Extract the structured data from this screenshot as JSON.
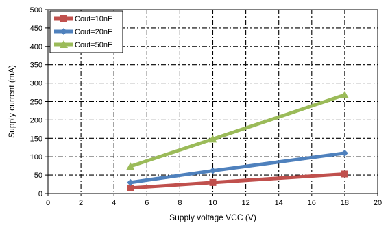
{
  "chart_data": {
    "type": "line",
    "xlabel": "Supply voltage VCC (V)",
    "ylabel": "Supply current (mA)",
    "xlim": [
      0,
      20
    ],
    "ylim": [
      0,
      500
    ],
    "x_ticks": [
      0,
      2,
      4,
      6,
      8,
      10,
      12,
      14,
      16,
      18,
      20
    ],
    "y_ticks": [
      0,
      50,
      100,
      150,
      200,
      250,
      300,
      350,
      400,
      450,
      500
    ],
    "grid": true,
    "grid_style": "dash-dot",
    "legend_position": "top-left",
    "series": [
      {
        "name": "Cout=10nF",
        "color": "#c0504d",
        "marker": "square",
        "x": [
          5,
          10,
          18
        ],
        "y": [
          15,
          30,
          53
        ]
      },
      {
        "name": "Cout=20nF",
        "color": "#4f81bd",
        "marker": "diamond",
        "x": [
          5,
          10,
          18
        ],
        "y": [
          30,
          62,
          110
        ]
      },
      {
        "name": "Cout=50nF",
        "color": "#9bbb59",
        "marker": "triangle",
        "x": [
          5,
          10,
          18
        ],
        "y": [
          74,
          148,
          268
        ]
      }
    ]
  }
}
